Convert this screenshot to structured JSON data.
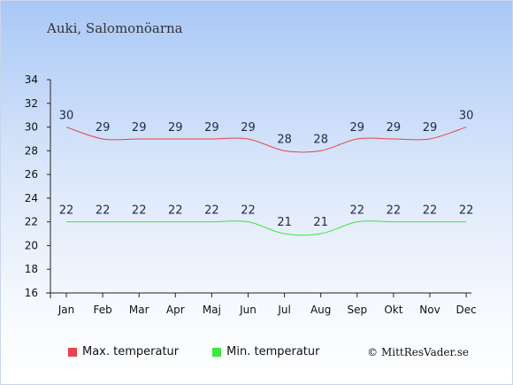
{
  "location": "Auki, Salomonöarna",
  "credit": "© MittResVader.se",
  "legend": {
    "max_label": "Max. temperatur",
    "min_label": "Min. temperatur"
  },
  "colors": {
    "max": "#e8434a",
    "min": "#3ee63e"
  },
  "chart_data": {
    "type": "line",
    "categories": [
      "Jan",
      "Feb",
      "Mar",
      "Apr",
      "Maj",
      "Jun",
      "Jul",
      "Aug",
      "Sep",
      "Okt",
      "Nov",
      "Dec"
    ],
    "series": [
      {
        "name": "Max. temperatur",
        "values": [
          30,
          29,
          29,
          29,
          29,
          29,
          28,
          28,
          29,
          29,
          29,
          30
        ]
      },
      {
        "name": "Min. temperatur",
        "values": [
          22,
          22,
          22,
          22,
          22,
          22,
          21,
          21,
          22,
          22,
          22,
          22
        ]
      }
    ],
    "ylim": [
      16,
      34
    ],
    "yticks": [
      16,
      18,
      20,
      22,
      24,
      26,
      28,
      30,
      32,
      34
    ],
    "grid": false,
    "legend_position": "bottom-left"
  }
}
